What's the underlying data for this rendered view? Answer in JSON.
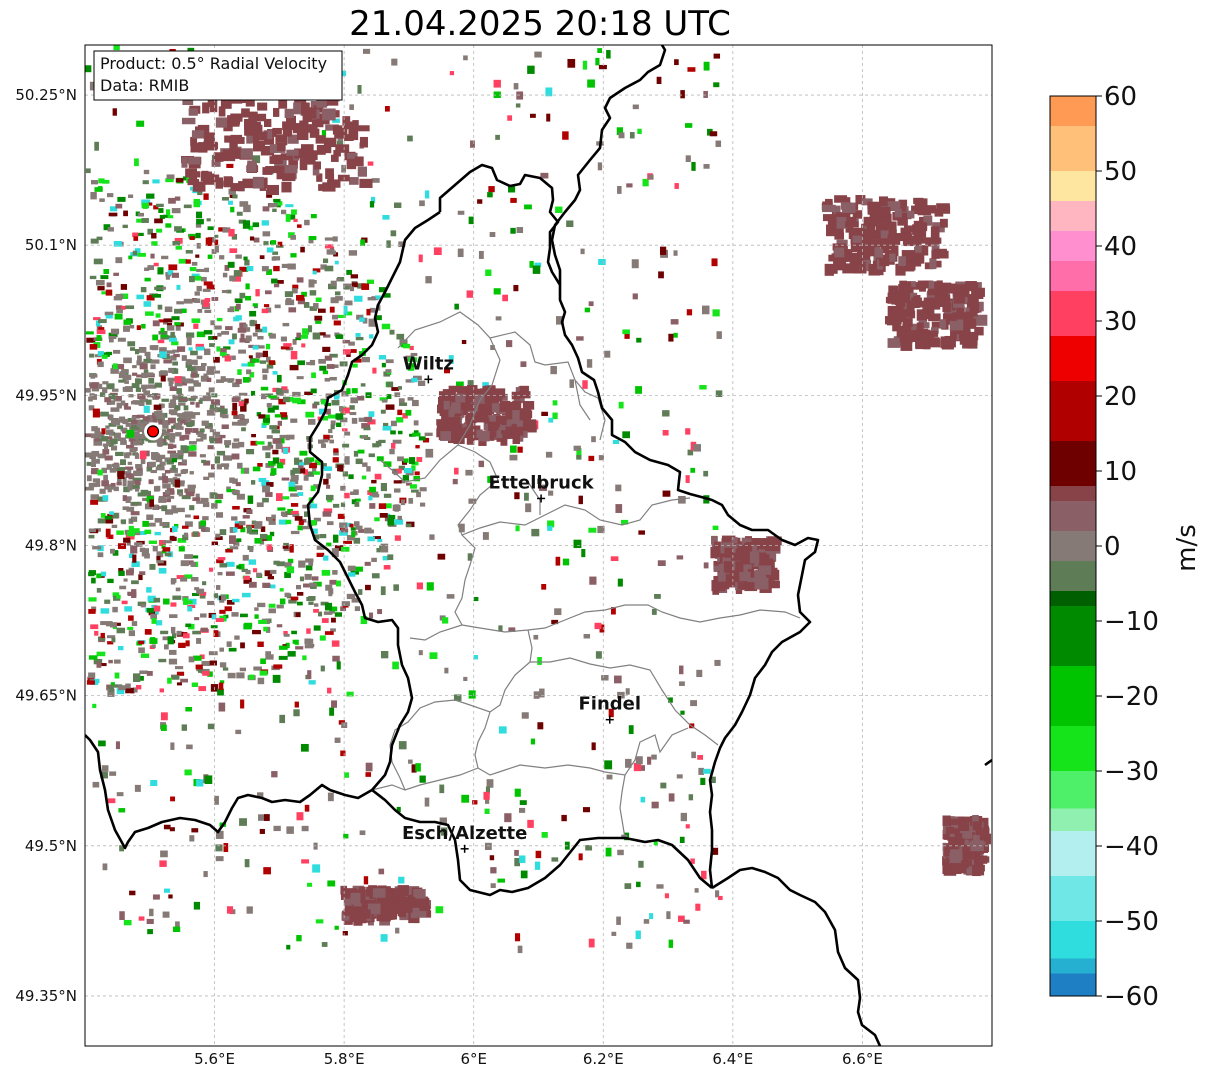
{
  "title": "21.04.2025 20:18 UTC",
  "info_box": {
    "product": "Product: 0.5° Radial Velocity",
    "data_source": "Data: RMIB"
  },
  "cities": [
    {
      "name": "Wiltz",
      "lon": 5.93,
      "lat": 49.966
    },
    {
      "name": "Ettelbruck",
      "lon": 6.104,
      "lat": 49.847
    },
    {
      "name": "Findel",
      "lon": 6.21,
      "lat": 49.626
    },
    {
      "name": "Esch/Alzette",
      "lon": 5.986,
      "lat": 49.497
    }
  ],
  "radar_site": {
    "lon": 5.505,
    "lat": 49.914
  },
  "axes": {
    "lon_min": 5.4,
    "lon_max": 6.8,
    "lat_min": 49.3,
    "lat_max": 50.3,
    "x_ticks": [
      {
        "value": 5.6,
        "label": "5.6°E"
      },
      {
        "value": 5.8,
        "label": "5.8°E"
      },
      {
        "value": 6.0,
        "label": "6°E"
      },
      {
        "value": 6.2,
        "label": "6.2°E"
      },
      {
        "value": 6.4,
        "label": "6.4°E"
      },
      {
        "value": 6.6,
        "label": "6.6°E"
      }
    ],
    "y_ticks": [
      {
        "value": 50.25,
        "label": "50.25°N"
      },
      {
        "value": 50.1,
        "label": "50.1°N"
      },
      {
        "value": 49.95,
        "label": "49.95°N"
      },
      {
        "value": 49.8,
        "label": "49.8°N"
      },
      {
        "value": 49.65,
        "label": "49.65°N"
      },
      {
        "value": 49.5,
        "label": "49.5°N"
      },
      {
        "value": 49.35,
        "label": "49.35°N"
      }
    ],
    "grid": true
  },
  "colorbar": {
    "unit": "m/s",
    "min": -60,
    "max": 60,
    "ticks": [
      {
        "value": 60,
        "label": "60"
      },
      {
        "value": 50,
        "label": "50"
      },
      {
        "value": 40,
        "label": "40"
      },
      {
        "value": 30,
        "label": "30"
      },
      {
        "value": 20,
        "label": "20"
      },
      {
        "value": 10,
        "label": "10"
      },
      {
        "value": 0,
        "label": "0"
      },
      {
        "value": -10,
        "label": "−10"
      },
      {
        "value": -20,
        "label": "−20"
      },
      {
        "value": -30,
        "label": "−30"
      },
      {
        "value": -40,
        "label": "−40"
      },
      {
        "value": -50,
        "label": "−50"
      },
      {
        "value": -60,
        "label": "−60"
      }
    ],
    "stops": [
      {
        "from": -60,
        "to": -57,
        "color": "#1f7fc4"
      },
      {
        "from": -57,
        "to": -55,
        "color": "#25afd0"
      },
      {
        "from": -55,
        "to": -50,
        "color": "#2fdcde"
      },
      {
        "from": -50,
        "to": -44,
        "color": "#6fe7e6"
      },
      {
        "from": -44,
        "to": -38,
        "color": "#b4efef"
      },
      {
        "from": -38,
        "to": -35,
        "color": "#8ff0b0"
      },
      {
        "from": -35,
        "to": -30,
        "color": "#4ef06a"
      },
      {
        "from": -30,
        "to": -24,
        "color": "#16e41a"
      },
      {
        "from": -24,
        "to": -16,
        "color": "#00c400"
      },
      {
        "from": -16,
        "to": -8,
        "color": "#008a00"
      },
      {
        "from": -8,
        "to": -6,
        "color": "#005f00"
      },
      {
        "from": -6,
        "to": -2,
        "color": "#5e7d56"
      },
      {
        "from": -2,
        "to": 2,
        "color": "#867a77"
      },
      {
        "from": 2,
        "to": 6,
        "color": "#8a5f66"
      },
      {
        "from": 6,
        "to": 8,
        "color": "#874348"
      },
      {
        "from": 8,
        "to": 14,
        "color": "#6f0000"
      },
      {
        "from": 14,
        "to": 22,
        "color": "#b00000"
      },
      {
        "from": 22,
        "to": 28,
        "color": "#ee0000"
      },
      {
        "from": 28,
        "to": 34,
        "color": "#ff4060"
      },
      {
        "from": 34,
        "to": 38,
        "color": "#ff6ea8"
      },
      {
        "from": 38,
        "to": 42,
        "color": "#ff8fcf"
      },
      {
        "from": 42,
        "to": 46,
        "color": "#ffb6c0"
      },
      {
        "from": 46,
        "to": 50,
        "color": "#ffe6a0"
      },
      {
        "from": 50,
        "to": 56,
        "color": "#ffc07a"
      },
      {
        "from": 56,
        "to": 60,
        "color": "#ff9a55"
      }
    ]
  }
}
